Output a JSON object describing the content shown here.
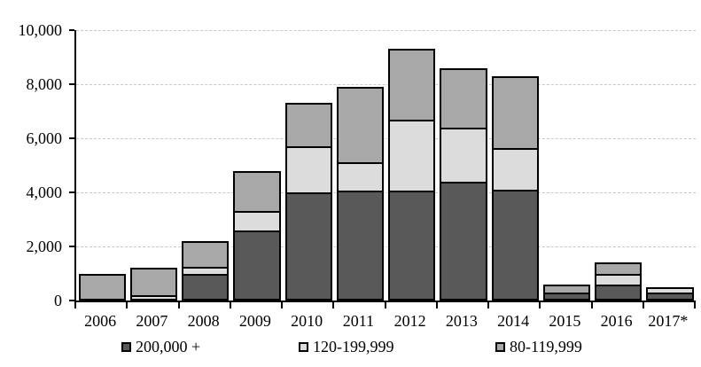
{
  "chart_data": {
    "type": "bar",
    "stacked": true,
    "title": "",
    "xlabel": "",
    "ylabel": "",
    "categories": [
      "2006",
      "2007",
      "2008",
      "2009",
      "2010",
      "2011",
      "2012",
      "2013",
      "2014",
      "2015",
      "2016",
      "2017*"
    ],
    "series": [
      {
        "name": "200,000 +",
        "color": "#595959",
        "values": [
          0,
          0,
          1000,
          2600,
          4000,
          4050,
          4050,
          4400,
          4100,
          300,
          600,
          300
        ]
      },
      {
        "name": "120-199,999",
        "color": "#dcdcdc",
        "values": [
          0,
          200,
          250,
          700,
          1700,
          1050,
          2650,
          2000,
          1550,
          0,
          400,
          200
        ]
      },
      {
        "name": "80-119,999",
        "color": "#a8a8a8",
        "values": [
          1000,
          1000,
          950,
          1500,
          1600,
          2800,
          2600,
          2200,
          2650,
          300,
          400,
          0
        ]
      }
    ],
    "totals": [
      1000,
      1200,
      2200,
      4800,
      7300,
      7900,
      9300,
      8600,
      8300,
      600,
      1400,
      500
    ],
    "ylim": [
      0,
      10000
    ],
    "y_ticks": [
      {
        "value": 0,
        "label": "0"
      },
      {
        "value": 2000,
        "label": "2,000"
      },
      {
        "value": 4000,
        "label": "4,000"
      },
      {
        "value": 6000,
        "label": "6,000"
      },
      {
        "value": 8000,
        "label": "8,000"
      },
      {
        "value": 10000,
        "label": "10,000"
      }
    ],
    "grid": "horizontal-dashed",
    "legend_position": "bottom"
  },
  "styles": {
    "background": "#ffffff",
    "bar_border": "#000000",
    "axis_color": "#000000",
    "gridline_color": "#c9c9c9"
  }
}
